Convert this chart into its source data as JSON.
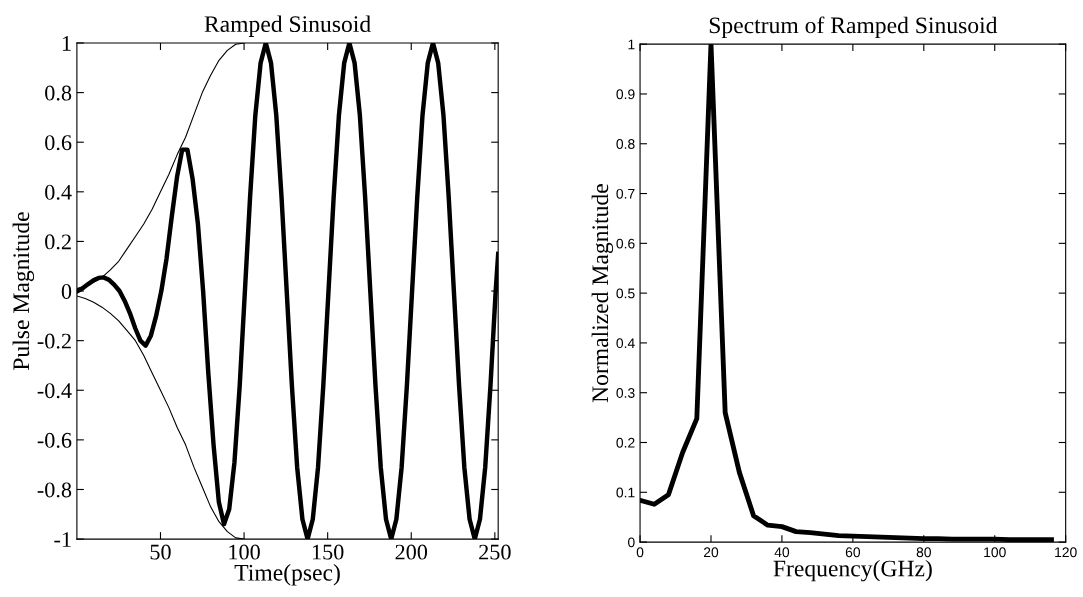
{
  "chart_data": [
    {
      "type": "line",
      "title": "Ramped Sinusoid",
      "xlabel": "Time(psec)",
      "ylabel": "Pulse Magnitude",
      "xlim": [
        0,
        252
      ],
      "xticks": [
        50,
        100,
        150,
        200,
        250
      ],
      "ylim": [
        -1,
        1
      ],
      "yticks": [
        -1,
        -0.8,
        -0.6,
        -0.4,
        -0.2,
        0,
        0.2,
        0.4,
        0.6,
        0.8,
        1
      ],
      "grid": false,
      "marker": "none",
      "line_style": "solid",
      "series": [
        {
          "color": "#000000",
          "x": [
            0,
            5,
            10,
            15,
            20,
            25,
            30,
            35,
            40,
            45,
            50,
            55,
            60,
            65,
            70,
            75,
            80,
            85,
            90,
            95,
            100
          ],
          "values": [
            0.01,
            0.02,
            0.035,
            0.055,
            0.085,
            0.12,
            0.17,
            0.22,
            0.27,
            0.33,
            0.4,
            0.47,
            0.55,
            0.62,
            0.71,
            0.8,
            0.87,
            0.93,
            0.97,
            0.995,
            1.0
          ]
        },
        {
          "color": "#000000",
          "x": [
            0,
            5,
            10,
            15,
            20,
            25,
            30,
            35,
            40,
            45,
            50,
            55,
            60,
            65,
            70,
            75,
            80,
            85,
            90,
            95,
            100
          ],
          "values": [
            -0.02,
            -0.03,
            -0.045,
            -0.065,
            -0.09,
            -0.12,
            -0.16,
            -0.2,
            -0.26,
            -0.33,
            -0.4,
            -0.47,
            -0.55,
            -0.62,
            -0.71,
            -0.79,
            -0.87,
            -0.93,
            -0.97,
            -0.995,
            -1.0
          ]
        },
        {
          "color": "#000000",
          "x": [
            0.5,
            3.6,
            6.75,
            9.9,
            13,
            16.1,
            19.25,
            22.4,
            25.5,
            28.6,
            31.75,
            34.9,
            38,
            41.1,
            44.25,
            47.4,
            50.5,
            53.6,
            56.75,
            59.9,
            63,
            66.1,
            69.25,
            72.4,
            75.5,
            78.6,
            81.75,
            84.9,
            88,
            91.1,
            94.25,
            97.4,
            100.5,
            103.6,
            106.75,
            109.9,
            113,
            116.1,
            119.25,
            122.4,
            125.5,
            128.6,
            131.75,
            134.9,
            138,
            141.1,
            144.25,
            147.4,
            150.5,
            153.6,
            156.75,
            159.9,
            163,
            166.1,
            169.25,
            172.4,
            175.5,
            178.6,
            181.75,
            184.9,
            188,
            191.1,
            194.25,
            197.4,
            200.5,
            203.6,
            206.75,
            209.9,
            213,
            216.1,
            219.25,
            222.4,
            225.5,
            228.6,
            231.75,
            234.9,
            238,
            241.1,
            244.25,
            247.4,
            250.5,
            252
          ],
          "values": [
            0.0,
            0.012,
            0.028,
            0.043,
            0.053,
            0.055,
            0.045,
            0.025,
            0.0,
            -0.04,
            -0.09,
            -0.15,
            -0.2,
            -0.22,
            -0.18,
            -0.1,
            0.0,
            0.13,
            0.3,
            0.46,
            0.57,
            0.57,
            0.45,
            0.27,
            0.0,
            -0.33,
            -0.62,
            -0.85,
            -0.94,
            -0.88,
            -0.69,
            -0.38,
            0.0,
            0.38,
            0.71,
            0.92,
            1.0,
            0.92,
            0.71,
            0.38,
            0.0,
            -0.38,
            -0.71,
            -0.92,
            -1.0,
            -0.92,
            -0.71,
            -0.38,
            0.0,
            0.38,
            0.71,
            0.92,
            1.0,
            0.92,
            0.71,
            0.38,
            0.0,
            -0.38,
            -0.71,
            -0.92,
            -1.0,
            -0.92,
            -0.71,
            -0.38,
            0.0,
            0.38,
            0.71,
            0.92,
            1.0,
            0.92,
            0.71,
            0.38,
            0.0,
            -0.38,
            -0.71,
            -0.92,
            -1.0,
            -0.92,
            -0.71,
            -0.38,
            0.0,
            0.15
          ]
        }
      ]
    },
    {
      "type": "line",
      "title": "Spectrum of Ramped Sinusoid",
      "xlabel": "Frequency(GHz)",
      "ylabel": "Normalized Magnitude",
      "xlim": [
        0,
        120
      ],
      "xticks": [
        0,
        20,
        40,
        60,
        80,
        100,
        120
      ],
      "ylim": [
        0,
        1
      ],
      "yticks": [
        0,
        0.1,
        0.2,
        0.3,
        0.4,
        0.5,
        0.6,
        0.7,
        0.8,
        0.9,
        1
      ],
      "grid": false,
      "marker": "none",
      "line_style": "solid",
      "series": [
        {
          "color": "#000000",
          "x": [
            0,
            4,
            8,
            12,
            16,
            20,
            24,
            28,
            32,
            36,
            40,
            44,
            48,
            52,
            56,
            60,
            64,
            68,
            72,
            76,
            80,
            84,
            88,
            92,
            96,
            100,
            104,
            108,
            112,
            116
          ],
          "values": [
            0.084,
            0.076,
            0.095,
            0.18,
            0.248,
            1.0,
            0.26,
            0.14,
            0.053,
            0.034,
            0.031,
            0.021,
            0.019,
            0.016,
            0.013,
            0.012,
            0.011,
            0.01,
            0.009,
            0.008,
            0.007,
            0.007,
            0.006,
            0.006,
            0.006,
            0.006,
            0.005,
            0.005,
            0.005,
            0.005
          ]
        }
      ]
    }
  ]
}
